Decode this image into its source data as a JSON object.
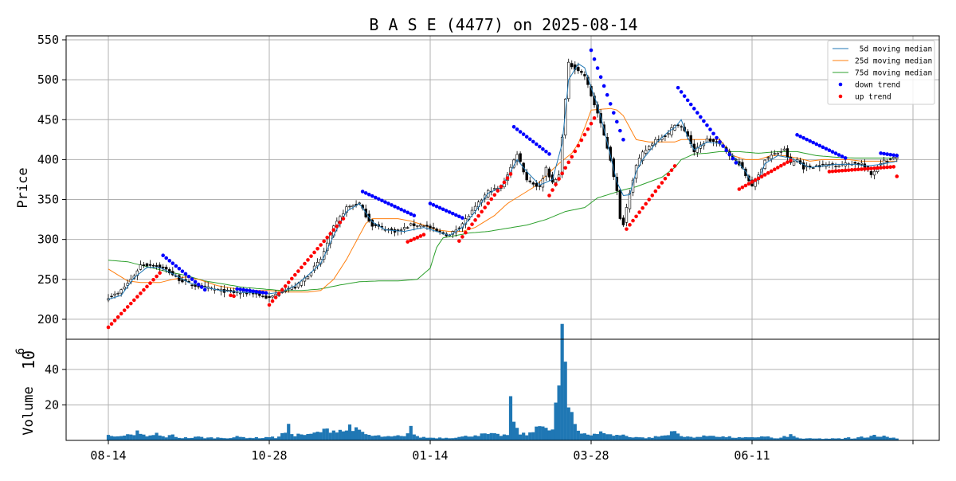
{
  "chart_data": {
    "type": "candlestick",
    "title": "B A S E (4477) on 2025-08-14",
    "price_panel": {
      "ylabel": "Price",
      "ylim": [
        175,
        555
      ],
      "yticks": [
        200,
        250,
        300,
        350,
        400,
        450,
        500,
        550
      ],
      "grid": true
    },
    "volume_panel": {
      "ylabel": "Volume",
      "exponent_label": "10",
      "exponent_power": "6",
      "ylim": [
        0,
        57
      ],
      "yticks": [
        20,
        40
      ],
      "grid": true
    },
    "xticks": [
      {
        "label": "08-14",
        "index": 0
      },
      {
        "label": "10-28",
        "index": 50
      },
      {
        "label": "01-14",
        "index": 100
      },
      {
        "label": "03-28",
        "index": 150
      },
      {
        "label": "06-11",
        "index": 200
      },
      {
        "label": "",
        "index": 250
      }
    ],
    "n_days": 246,
    "legend": {
      "placement": "upper right",
      "entries": [
        {
          "label": " 5d moving median",
          "color": "#1f77b4",
          "kind": "line"
        },
        {
          "label": "25d moving median",
          "color": "#ff7f0e",
          "kind": "line"
        },
        {
          "label": "75d moving median",
          "color": "#2ca02c",
          "kind": "line"
        },
        {
          "label": "down trend",
          "color": "#0000ff",
          "kind": "dot"
        },
        {
          "label": "up trend",
          "color": "#ff0000",
          "kind": "dot"
        }
      ]
    },
    "close_anchors": [
      [
        0,
        228
      ],
      [
        3,
        232
      ],
      [
        6,
        245
      ],
      [
        8,
        255
      ],
      [
        10,
        268
      ],
      [
        14,
        268
      ],
      [
        18,
        262
      ],
      [
        22,
        250
      ],
      [
        26,
        243
      ],
      [
        30,
        240
      ],
      [
        35,
        236
      ],
      [
        40,
        233
      ],
      [
        45,
        233
      ],
      [
        50,
        226
      ],
      [
        54,
        236
      ],
      [
        58,
        240
      ],
      [
        62,
        255
      ],
      [
        66,
        275
      ],
      [
        70,
        315
      ],
      [
        74,
        340
      ],
      [
        78,
        345
      ],
      [
        80,
        330
      ],
      [
        82,
        318
      ],
      [
        86,
        313
      ],
      [
        90,
        310
      ],
      [
        94,
        318
      ],
      [
        98,
        318
      ],
      [
        102,
        310
      ],
      [
        106,
        305
      ],
      [
        110,
        320
      ],
      [
        114,
        340
      ],
      [
        118,
        360
      ],
      [
        122,
        365
      ],
      [
        125,
        390
      ],
      [
        127,
        408
      ],
      [
        130,
        375
      ],
      [
        134,
        365
      ],
      [
        136,
        390
      ],
      [
        138,
        370
      ],
      [
        140,
        380
      ],
      [
        141,
        430
      ],
      [
        142,
        475
      ],
      [
        143,
        520
      ],
      [
        146,
        512
      ],
      [
        148,
        505
      ],
      [
        150,
        480
      ],
      [
        152,
        458
      ],
      [
        154,
        430
      ],
      [
        156,
        400
      ],
      [
        158,
        360
      ],
      [
        159,
        325
      ],
      [
        160,
        320
      ],
      [
        162,
        360
      ],
      [
        164,
        392
      ],
      [
        166,
        408
      ],
      [
        170,
        425
      ],
      [
        174,
        432
      ],
      [
        176,
        445
      ],
      [
        178,
        440
      ],
      [
        180,
        430
      ],
      [
        182,
        410
      ],
      [
        186,
        425
      ],
      [
        190,
        420
      ],
      [
        194,
        402
      ],
      [
        196,
        395
      ],
      [
        198,
        380
      ],
      [
        200,
        368
      ],
      [
        202,
        380
      ],
      [
        204,
        400
      ],
      [
        206,
        405
      ],
      [
        210,
        412
      ],
      [
        212,
        395
      ],
      [
        214,
        400
      ],
      [
        216,
        390
      ],
      [
        220,
        392
      ],
      [
        224,
        394
      ],
      [
        226,
        393
      ],
      [
        230,
        395
      ],
      [
        234,
        395
      ],
      [
        236,
        385
      ],
      [
        237,
        381
      ],
      [
        240,
        397
      ],
      [
        243,
        400
      ],
      [
        245,
        403
      ]
    ],
    "ma5_anchors": [
      [
        0,
        225
      ],
      [
        4,
        230
      ],
      [
        8,
        252
      ],
      [
        12,
        265
      ],
      [
        16,
        265
      ],
      [
        20,
        257
      ],
      [
        25,
        246
      ],
      [
        30,
        240
      ],
      [
        35,
        236
      ],
      [
        40,
        234
      ],
      [
        45,
        233
      ],
      [
        50,
        232
      ],
      [
        54,
        234
      ],
      [
        58,
        242
      ],
      [
        62,
        255
      ],
      [
        66,
        270
      ],
      [
        70,
        305
      ],
      [
        74,
        335
      ],
      [
        78,
        345
      ],
      [
        82,
        322
      ],
      [
        86,
        312
      ],
      [
        92,
        310
      ],
      [
        98,
        315
      ],
      [
        102,
        310
      ],
      [
        106,
        305
      ],
      [
        110,
        315
      ],
      [
        114,
        335
      ],
      [
        118,
        358
      ],
      [
        122,
        365
      ],
      [
        125,
        385
      ],
      [
        127,
        400
      ],
      [
        130,
        385
      ],
      [
        134,
        368
      ],
      [
        138,
        375
      ],
      [
        141,
        420
      ],
      [
        143,
        500
      ],
      [
        146,
        520
      ],
      [
        148,
        515
      ],
      [
        150,
        490
      ],
      [
        152,
        468
      ],
      [
        154,
        438
      ],
      [
        156,
        405
      ],
      [
        158,
        372
      ],
      [
        160,
        355
      ],
      [
        162,
        356
      ],
      [
        164,
        385
      ],
      [
        166,
        400
      ],
      [
        170,
        420
      ],
      [
        174,
        435
      ],
      [
        176,
        440
      ],
      [
        178,
        450
      ],
      [
        180,
        428
      ],
      [
        182,
        412
      ],
      [
        186,
        422
      ],
      [
        190,
        420
      ],
      [
        194,
        405
      ],
      [
        198,
        385
      ],
      [
        200,
        370
      ],
      [
        202,
        375
      ],
      [
        204,
        395
      ],
      [
        208,
        405
      ],
      [
        212,
        402
      ],
      [
        214,
        398
      ],
      [
        218,
        390
      ],
      [
        222,
        392
      ],
      [
        226,
        394
      ],
      [
        232,
        394
      ],
      [
        236,
        392
      ],
      [
        240,
        394
      ],
      [
        245,
        398
      ]
    ],
    "ma25_anchors": [
      [
        0,
        263
      ],
      [
        2,
        258
      ],
      [
        6,
        248
      ],
      [
        10,
        246
      ],
      [
        16,
        246
      ],
      [
        20,
        250
      ],
      [
        24,
        253
      ],
      [
        28,
        250
      ],
      [
        34,
        242
      ],
      [
        40,
        238
      ],
      [
        46,
        236
      ],
      [
        50,
        236
      ],
      [
        56,
        234
      ],
      [
        62,
        234
      ],
      [
        66,
        236
      ],
      [
        70,
        250
      ],
      [
        74,
        275
      ],
      [
        78,
        305
      ],
      [
        80,
        320
      ],
      [
        82,
        326
      ],
      [
        86,
        326
      ],
      [
        90,
        326
      ],
      [
        94,
        323
      ],
      [
        98,
        318
      ],
      [
        102,
        312
      ],
      [
        106,
        310
      ],
      [
        110,
        310
      ],
      [
        114,
        315
      ],
      [
        118,
        325
      ],
      [
        120,
        330
      ],
      [
        124,
        345
      ],
      [
        128,
        355
      ],
      [
        132,
        365
      ],
      [
        136,
        380
      ],
      [
        140,
        395
      ],
      [
        144,
        408
      ],
      [
        146,
        420
      ],
      [
        148,
        440
      ],
      [
        150,
        462
      ],
      [
        156,
        464
      ],
      [
        158,
        462
      ],
      [
        160,
        455
      ],
      [
        162,
        440
      ],
      [
        164,
        425
      ],
      [
        168,
        422
      ],
      [
        172,
        422
      ],
      [
        176,
        422
      ],
      [
        178,
        425
      ],
      [
        182,
        425
      ],
      [
        186,
        425
      ],
      [
        190,
        425
      ],
      [
        194,
        405
      ],
      [
        198,
        400
      ],
      [
        202,
        400
      ],
      [
        206,
        405
      ],
      [
        210,
        405
      ],
      [
        214,
        402
      ],
      [
        218,
        398
      ],
      [
        222,
        400
      ],
      [
        226,
        400
      ],
      [
        230,
        400
      ],
      [
        234,
        398
      ],
      [
        238,
        398
      ],
      [
        242,
        398
      ],
      [
        245,
        398
      ]
    ],
    "ma75_anchors": [
      [
        0,
        274
      ],
      [
        6,
        272
      ],
      [
        12,
        266
      ],
      [
        18,
        260
      ],
      [
        24,
        255
      ],
      [
        30,
        248
      ],
      [
        36,
        244
      ],
      [
        42,
        240
      ],
      [
        48,
        238
      ],
      [
        54,
        236
      ],
      [
        60,
        236
      ],
      [
        66,
        238
      ],
      [
        72,
        243
      ],
      [
        78,
        247
      ],
      [
        84,
        248
      ],
      [
        90,
        248
      ],
      [
        96,
        250
      ],
      [
        100,
        264
      ],
      [
        102,
        290
      ],
      [
        104,
        302
      ],
      [
        108,
        305
      ],
      [
        112,
        308
      ],
      [
        118,
        310
      ],
      [
        124,
        314
      ],
      [
        130,
        318
      ],
      [
        136,
        325
      ],
      [
        142,
        335
      ],
      [
        148,
        340
      ],
      [
        152,
        352
      ],
      [
        156,
        357
      ],
      [
        160,
        362
      ],
      [
        164,
        366
      ],
      [
        168,
        372
      ],
      [
        172,
        378
      ],
      [
        176,
        390
      ],
      [
        178,
        400
      ],
      [
        182,
        407
      ],
      [
        186,
        408
      ],
      [
        190,
        410
      ],
      [
        196,
        410
      ],
      [
        202,
        408
      ],
      [
        208,
        410
      ],
      [
        214,
        410
      ],
      [
        220,
        405
      ],
      [
        226,
        403
      ],
      [
        232,
        402
      ],
      [
        238,
        402
      ],
      [
        245,
        402
      ]
    ],
    "volume_anchors": [
      [
        0,
        3.5
      ],
      [
        4,
        2
      ],
      [
        6,
        3
      ],
      [
        8,
        2.5
      ],
      [
        9,
        5
      ],
      [
        10,
        4
      ],
      [
        12,
        2
      ],
      [
        14,
        3
      ],
      [
        15,
        4
      ],
      [
        16,
        2.5
      ],
      [
        18,
        2
      ],
      [
        20,
        3
      ],
      [
        22,
        1.5
      ],
      [
        26,
        1.5
      ],
      [
        28,
        2
      ],
      [
        30,
        1.5
      ],
      [
        34,
        1.5
      ],
      [
        38,
        1.5
      ],
      [
        40,
        2
      ],
      [
        44,
        1.5
      ],
      [
        48,
        1.5
      ],
      [
        50,
        2
      ],
      [
        52,
        1.5
      ],
      [
        55,
        4.5
      ],
      [
        56,
        7.5
      ],
      [
        57,
        4
      ],
      [
        58,
        3
      ],
      [
        60,
        3.5
      ],
      [
        62,
        3
      ],
      [
        64,
        4
      ],
      [
        66,
        5
      ],
      [
        68,
        6
      ],
      [
        70,
        5.5
      ],
      [
        72,
        6
      ],
      [
        74,
        5
      ],
      [
        75,
        9
      ],
      [
        76,
        7
      ],
      [
        78,
        5
      ],
      [
        80,
        3.5
      ],
      [
        82,
        2.5
      ],
      [
        84,
        2.5
      ],
      [
        86,
        2
      ],
      [
        88,
        2
      ],
      [
        90,
        2.5
      ],
      [
        92,
        2
      ],
      [
        94,
        8
      ],
      [
        95,
        3.5
      ],
      [
        96,
        2
      ],
      [
        100,
        1.5
      ],
      [
        102,
        1.5
      ],
      [
        106,
        1.5
      ],
      [
        110,
        2
      ],
      [
        114,
        3
      ],
      [
        118,
        3.5
      ],
      [
        122,
        3
      ],
      [
        124,
        3
      ],
      [
        125,
        20
      ],
      [
        126,
        12
      ],
      [
        127,
        6
      ],
      [
        128,
        4
      ],
      [
        130,
        3
      ],
      [
        132,
        6
      ],
      [
        133,
        9
      ],
      [
        134,
        8
      ],
      [
        135,
        7
      ],
      [
        136,
        6
      ],
      [
        138,
        6
      ],
      [
        140,
        31
      ],
      [
        141,
        53
      ],
      [
        142,
        41
      ],
      [
        143,
        19
      ],
      [
        144,
        16
      ],
      [
        145,
        10
      ],
      [
        146,
        6
      ],
      [
        148,
        4
      ],
      [
        150,
        3
      ],
      [
        152,
        3.5
      ],
      [
        154,
        5
      ],
      [
        156,
        3
      ],
      [
        158,
        3
      ],
      [
        160,
        3
      ],
      [
        162,
        2
      ],
      [
        164,
        2
      ],
      [
        166,
        1.5
      ],
      [
        168,
        1.5
      ],
      [
        170,
        2
      ],
      [
        174,
        3
      ],
      [
        175,
        5
      ],
      [
        176,
        7
      ],
      [
        177,
        4
      ],
      [
        178,
        2
      ],
      [
        180,
        2
      ],
      [
        184,
        2
      ],
      [
        186,
        2.5
      ],
      [
        188,
        3
      ],
      [
        190,
        2
      ],
      [
        192,
        2
      ],
      [
        196,
        1.5
      ],
      [
        200,
        1.5
      ],
      [
        204,
        2.5
      ],
      [
        206,
        1.5
      ],
      [
        208,
        1
      ],
      [
        212,
        3
      ],
      [
        214,
        1.5
      ],
      [
        216,
        1
      ],
      [
        220,
        1
      ],
      [
        224,
        1
      ],
      [
        228,
        1
      ],
      [
        230,
        1.5
      ],
      [
        232,
        1
      ],
      [
        234,
        2
      ],
      [
        236,
        2
      ],
      [
        238,
        3
      ],
      [
        240,
        2.5
      ],
      [
        242,
        2
      ],
      [
        244,
        1.5
      ],
      [
        245,
        1
      ]
    ],
    "down_trend_runs": [
      [
        17,
        30,
        280,
        237
      ],
      [
        40,
        49,
        238,
        233
      ],
      [
        79,
        95,
        360,
        330
      ],
      [
        100,
        110,
        345,
        327
      ],
      [
        126,
        137,
        441,
        407
      ],
      [
        150,
        160,
        537,
        425
      ],
      [
        177,
        195,
        490,
        396
      ],
      [
        214,
        229,
        431,
        402
      ],
      [
        240,
        245,
        408,
        405
      ]
    ],
    "up_trend_runs": [
      [
        0,
        16,
        190,
        258
      ],
      [
        38,
        39,
        230,
        229
      ],
      [
        50,
        73,
        218,
        326
      ],
      [
        93,
        98,
        297,
        306
      ],
      [
        109,
        125,
        298,
        382
      ],
      [
        137,
        151,
        355,
        452
      ],
      [
        161,
        176,
        313,
        392
      ],
      [
        196,
        212,
        363,
        399
      ],
      [
        224,
        244,
        385,
        391
      ],
      [
        245,
        245,
        379,
        379
      ]
    ],
    "candle_sample": {
      "open": 402,
      "high": 405,
      "low": 395,
      "close": 403
    }
  }
}
